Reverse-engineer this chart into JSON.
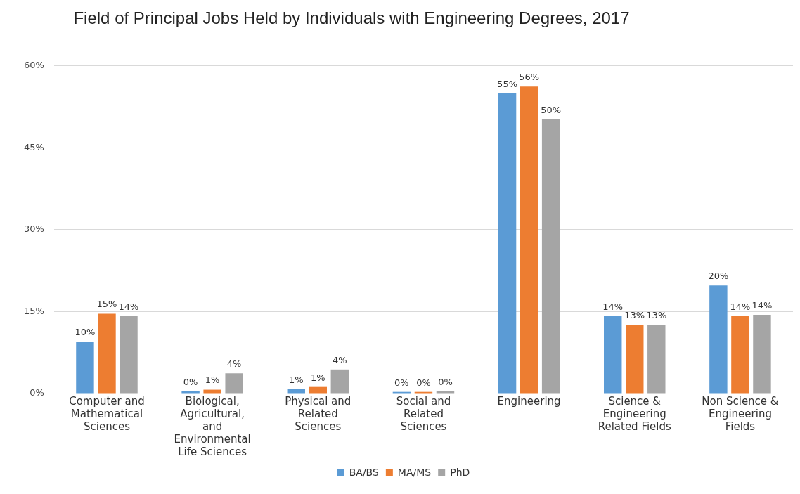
{
  "chart_data": {
    "type": "bar",
    "title": "Field of Principal Jobs Held by Individuals with Engineering Degrees, 2017",
    "categories": [
      "Computer and Mathematical Sciences",
      "Biological, Agricultural, and Environmental Life Sciences",
      "Physical and Related Sciences",
      "Social and Related Sciences",
      "Engineering",
      "Science & Engineering Related Fields",
      "Non Science & Engineering Fields"
    ],
    "series": [
      {
        "name": "BA/BS",
        "color": "#5b9bd5",
        "values": [
          9.5,
          0.4,
          0.8,
          0.3,
          55,
          14.2,
          19.8
        ],
        "value_labels": [
          "10%",
          "0%",
          "1%",
          "0%",
          "55%",
          "14%",
          "20%"
        ]
      },
      {
        "name": "MA/MS",
        "color": "#ed7d31",
        "values": [
          14.6,
          0.7,
          1.2,
          0.3,
          56.2,
          12.6,
          14.2
        ],
        "value_labels": [
          "15%",
          "1%",
          "1%",
          "0%",
          "56%",
          "13%",
          "14%"
        ]
      },
      {
        "name": "PhD",
        "color": "#a5a5a5",
        "values": [
          14.2,
          3.7,
          4.4,
          0.4,
          50.2,
          12.6,
          14.4
        ],
        "value_labels": [
          "14%",
          "4%",
          "4%",
          "0%",
          "50%",
          "13%",
          "14%"
        ]
      }
    ],
    "ylim": [
      0,
      60
    ],
    "yticks": [
      {
        "value": 0,
        "label": "0%"
      },
      {
        "value": 15,
        "label": "15%"
      },
      {
        "value": 30,
        "label": "30%"
      },
      {
        "value": 45,
        "label": "45%"
      },
      {
        "value": 60,
        "label": "60%"
      }
    ],
    "grid": "y",
    "legend": "bottom"
  }
}
